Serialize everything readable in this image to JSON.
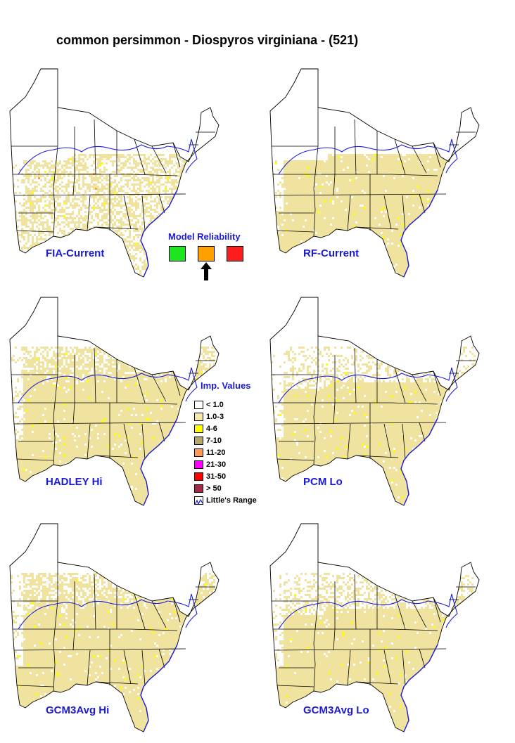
{
  "title": "common persimmon - Diospyros virginiana - (521)",
  "maps": [
    {
      "label": "FIA-Current",
      "density": 0.55,
      "north": 0.0
    },
    {
      "label": "RF-Current",
      "density": 1.0,
      "north": 0.0
    },
    {
      "label": "HADLEY Hi",
      "density": 1.0,
      "north": 1.0
    },
    {
      "label": "PCM Lo",
      "density": 1.0,
      "north": 0.45
    },
    {
      "label": "GCM3Avg Hi",
      "density": 1.0,
      "north": 1.0
    },
    {
      "label": "GCM3Avg Lo",
      "density": 1.0,
      "north": 0.55
    }
  ],
  "model_reliability": {
    "title": "Model Reliability",
    "levels": [
      {
        "color": "#1ee61e"
      },
      {
        "color": "#ff9f00"
      },
      {
        "color": "#ff1c1c"
      }
    ],
    "selected_index": 1
  },
  "importance_legend": {
    "title": "Imp. Values",
    "items": [
      {
        "label": "< 1.0",
        "color": "#ffffff"
      },
      {
        "label": "1.0-3",
        "color": "#f5e8a8"
      },
      {
        "label": "4-6",
        "color": "#ffff00"
      },
      {
        "label": "7-10",
        "color": "#b5a66e"
      },
      {
        "label": "11-20",
        "color": "#ff9a55"
      },
      {
        "label": "21-30",
        "color": "#ff00ff"
      },
      {
        "label": "31-50",
        "color": "#ff0000"
      },
      {
        "label": "> 50",
        "color": "#a52a4a"
      },
      {
        "label": "Little's Range",
        "color": "#1a1ad8",
        "type": "range-line"
      }
    ]
  },
  "colors": {
    "label_blue": "#1a1ad8",
    "habitat_fill": "#f0e3a0",
    "range_line": "#1a1ad8",
    "state_line": "#000000"
  }
}
